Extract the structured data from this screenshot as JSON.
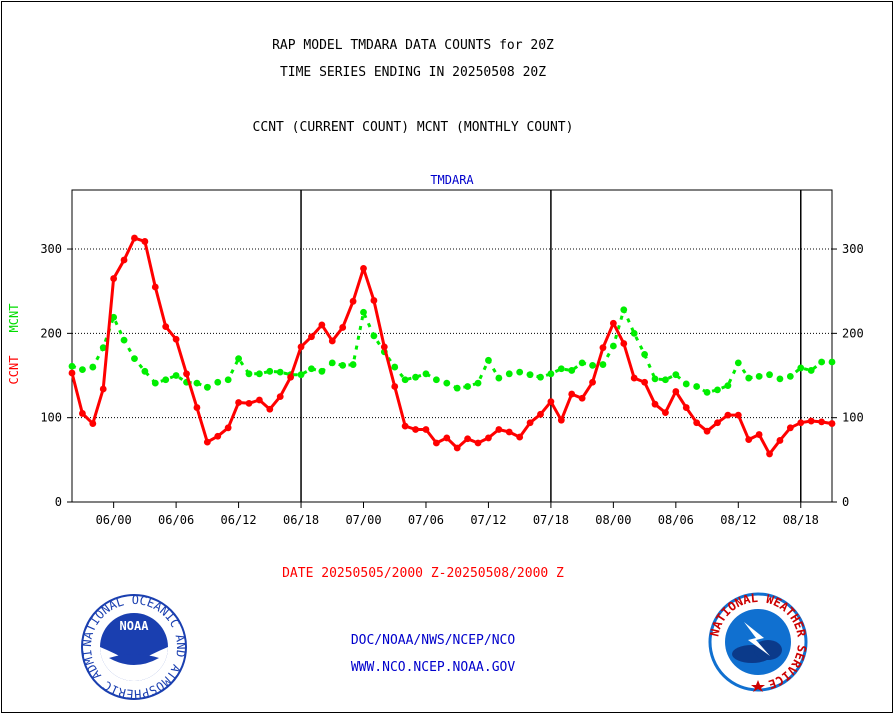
{
  "header": {
    "line1": "RAP MODEL TMDARA DATA COUNTS for 20Z",
    "line2": "TIME SERIES ENDING IN 20250508 20Z",
    "line3": "CCNT (CURRENT COUNT) MCNT (MONTHLY COUNT)"
  },
  "date_range": "DATE 20250505/2000 Z-20250508/2000 Z",
  "footer": {
    "line1": "DOC/NOAA/NWS/NCEP/NCO",
    "line2": "WWW.NCO.NCEP.NOAA.GOV"
  },
  "logos": {
    "noaa_text": "NOAA",
    "noaa_ring": "NATIONAL OCEANIC AND ATMOSPHERIC ADMINISTRATION · U.S. DEPARTMENT OF COMMERCE ·",
    "nws_ring": "NATIONAL WEATHER SERVICE"
  },
  "colors": {
    "ccnt": "#ff0000",
    "mcnt": "#00ee00",
    "title_blue": "#0000cc",
    "grid": "#000000",
    "noaa_blue": "#1a3fb0",
    "nws_blue": "#1070d0"
  },
  "chart_data": {
    "type": "line",
    "title": "TMDARA",
    "ylabel_ccnt": "CCNT",
    "ylabel_mcnt": "MCNT",
    "ylim": [
      0,
      370
    ],
    "yticks": [
      0,
      100,
      200,
      300
    ],
    "xlim": [
      0,
      73
    ],
    "xtick_positions": [
      4,
      10,
      16,
      22,
      28,
      34,
      40,
      46,
      52,
      58,
      64,
      70
    ],
    "xtick_labels": [
      "06/00",
      "06/06",
      "06/12",
      "06/18",
      "07/00",
      "07/06",
      "07/12",
      "07/18",
      "08/00",
      "08/06",
      "08/12",
      "08/18"
    ],
    "day_boundaries": [
      22,
      46,
      70
    ],
    "grid": "horizontal-dotted",
    "series": [
      {
        "name": "CCNT",
        "values": [
          153,
          105,
          93,
          134,
          265,
          287,
          313,
          309,
          255,
          208,
          193,
          152,
          112,
          71,
          78,
          88,
          118,
          117,
          121,
          110,
          125,
          148,
          184,
          196,
          210,
          191,
          207,
          238,
          277,
          239,
          184,
          137,
          90,
          86,
          86,
          70,
          76,
          64,
          75,
          70,
          76,
          86,
          83,
          77,
          94,
          104,
          119,
          97,
          128,
          123,
          142,
          183,
          212,
          188,
          147,
          142,
          116,
          106,
          131,
          112,
          94,
          84,
          94,
          103,
          103,
          74,
          80,
          57,
          73,
          88,
          94,
          96,
          95,
          93
        ]
      },
      {
        "name": "MCNT",
        "values": [
          161,
          157,
          160,
          183,
          219,
          192,
          170,
          155,
          141,
          145,
          150,
          142,
          141,
          136,
          142,
          145,
          170,
          152,
          152,
          155,
          154,
          151,
          151,
          158,
          155,
          165,
          162,
          163,
          225,
          197,
          178,
          160,
          145,
          148,
          152,
          145,
          141,
          135,
          137,
          141,
          168,
          147,
          152,
          154,
          151,
          148,
          152,
          158,
          156,
          165,
          162,
          163,
          185,
          228,
          200,
          175,
          146,
          145,
          151,
          140,
          137,
          130,
          133,
          138,
          165,
          147,
          149,
          151,
          146,
          149,
          159,
          156,
          166,
          166
        ]
      }
    ]
  }
}
